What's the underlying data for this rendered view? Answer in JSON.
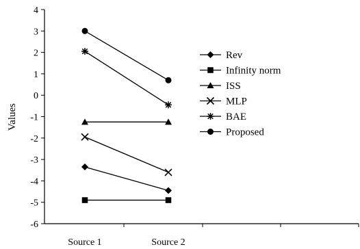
{
  "chart_data": {
    "type": "line",
    "categories": [
      "Source 1",
      "Source 2"
    ],
    "ylabel": "Values",
    "xlabel": "",
    "ylim": [
      -6,
      4
    ],
    "yticks": [
      4,
      3,
      2,
      1,
      0,
      -1,
      -2,
      -3,
      -4,
      -5,
      -6
    ],
    "grid": false,
    "legend_position": "right",
    "series": [
      {
        "name": "Rev",
        "marker": "diamond",
        "values": [
          -3.35,
          -4.45
        ]
      },
      {
        "name": "Infinity norm",
        "marker": "square",
        "values": [
          -4.9,
          -4.9
        ]
      },
      {
        "name": "ISS",
        "marker": "triangle",
        "values": [
          -1.25,
          -1.25
        ]
      },
      {
        "name": "MLP",
        "marker": "x",
        "values": [
          -1.95,
          -3.6
        ]
      },
      {
        "name": "BAE",
        "marker": "star",
        "values": [
          2.05,
          -0.45
        ]
      },
      {
        "name": "Proposed",
        "marker": "circle",
        "values": [
          3.0,
          0.7
        ]
      }
    ],
    "color": "#000000"
  }
}
